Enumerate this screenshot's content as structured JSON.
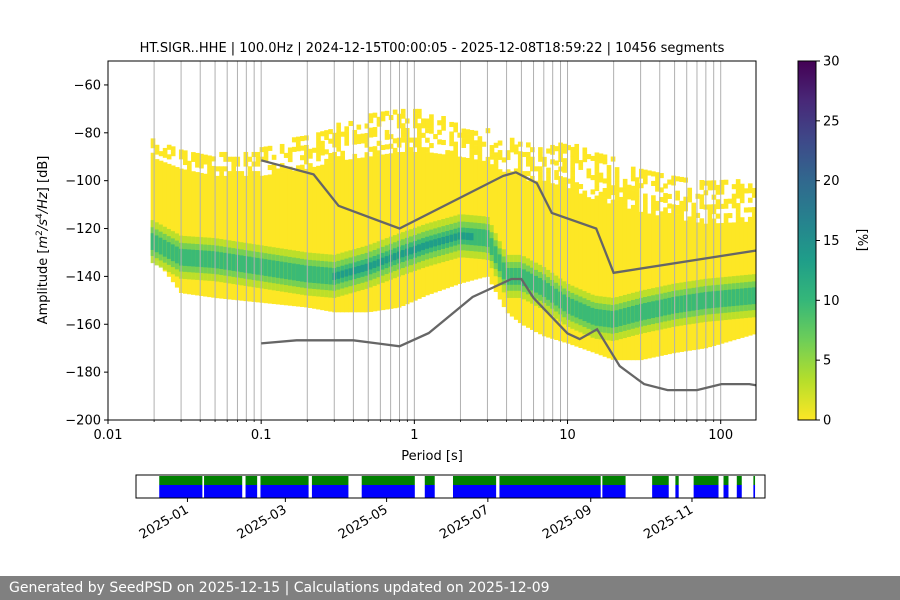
{
  "chart_data": [
    {
      "type": "heatmap",
      "title": "HT.SIGR..HHE | 100.0Hz | 2024-12-15T00:00:05 - 2025-12-08T18:59:22 | 10456 segments",
      "xlabel": "Period [s]",
      "ylabel_parts": [
        "Amplitude [",
        "m",
        "2",
        "/",
        "s",
        "4",
        "/",
        "Hz",
        "] [dB]"
      ],
      "xscale": "log",
      "xlim": [
        0.01,
        170
      ],
      "ylim": [
        -200,
        -50
      ],
      "x_ticks": [
        0.01,
        0.1,
        1,
        10,
        100
      ],
      "x_tick_labels": [
        "0.01",
        "0.1",
        "1",
        "10",
        "100"
      ],
      "y_ticks": [
        -200,
        -180,
        -160,
        -140,
        -120,
        -100,
        -80,
        -60
      ],
      "y_tick_labels": [
        "−200",
        "−180",
        "−160",
        "−140",
        "−120",
        "−100",
        "−80",
        "−60"
      ],
      "grid": "vertical log gridlines",
      "colorbar": {
        "label": "[%]",
        "range": [
          0,
          30
        ],
        "ticks": [
          0,
          5,
          10,
          15,
          20,
          25,
          30
        ],
        "tick_labels": [
          "0",
          "5",
          "10",
          "15",
          "20",
          "25",
          "30"
        ],
        "colormap": [
          "#fde725",
          "#b5de2b",
          "#6ece58",
          "#35b779",
          "#1f9e89",
          "#26828e",
          "#31688e",
          "#3e4989",
          "#482878",
          "#440154"
        ]
      },
      "density": {
        "x": [
          0.019,
          0.03,
          0.05,
          0.1,
          0.2,
          0.3,
          0.5,
          0.8,
          1.2,
          2,
          3,
          4,
          5,
          7,
          10,
          15,
          20,
          30,
          50,
          80,
          170
        ],
        "mode": [
          -125,
          -132,
          -133,
          -136,
          -139,
          -140,
          -136,
          -131,
          -127,
          -123,
          -124,
          -140,
          -140,
          -145,
          -152,
          -157,
          -158,
          -155,
          -152,
          -150,
          -148
        ],
        "upper": [
          -90,
          -95,
          -98,
          -98,
          -95,
          -92,
          -90,
          -88,
          -88,
          -90,
          -92,
          -97,
          -100,
          -100,
          -103,
          -108,
          -110,
          -113,
          -116,
          -118,
          -117
        ],
        "lower": [
          -130,
          -147,
          -149,
          -151,
          -153,
          -155,
          -155,
          -153,
          -148,
          -143,
          -140,
          -155,
          -160,
          -165,
          -168,
          -172,
          -175,
          -175,
          -172,
          -170,
          -164
        ],
        "scatter_top": [
          -82,
          -88,
          -90,
          -88,
          -82,
          -78,
          -74,
          -70,
          -72,
          -78,
          -80,
          -82,
          -85,
          -88,
          -85,
          -88,
          -92,
          -95,
          -98,
          -100,
          -102
        ]
      },
      "nhnm": {
        "x": [
          0.1,
          0.22,
          0.32,
          0.8,
          3.8,
          4.6,
          6.3,
          7.9,
          15.4,
          20,
          354.8
        ],
        "y": [
          -91.5,
          -97.4,
          -110.5,
          -120,
          -98,
          -96.5,
          -101,
          -113.5,
          -120,
          -138.5,
          -126
        ]
      },
      "nlnm": {
        "x": [
          0.1,
          0.17,
          0.4,
          0.8,
          1.24,
          2.4,
          4.3,
          5,
          6,
          10,
          12,
          15.6,
          21.9,
          31.6,
          45,
          70,
          101,
          154,
          170
        ],
        "y": [
          -168,
          -166.7,
          -166.7,
          -169.2,
          -163.7,
          -148.6,
          -141.1,
          -141.1,
          -149,
          -163.8,
          -166.2,
          -162.1,
          -177.5,
          -185,
          -187.5,
          -187.5,
          -185,
          -185,
          -185.5
        ]
      }
    },
    {
      "type": "timeline",
      "x_tick_labels": [
        "2025-01",
        "2025-03",
        "2025-05",
        "2025-07",
        "2025-09",
        "2025-11"
      ],
      "x_ticks": [
        "2025-01-01",
        "2025-03-01",
        "2025-05-01",
        "2025-07-01",
        "2025-09-01",
        "2025-11-01"
      ],
      "xlim": [
        "2024-12-01",
        "2025-12-15"
      ],
      "series": [
        {
          "color": "#008000",
          "segments": [
            [
              "2024-12-15",
              "2025-01-10"
            ],
            [
              "2025-01-11",
              "2025-02-03"
            ],
            [
              "2025-02-05",
              "2025-02-12"
            ],
            [
              "2025-02-14",
              "2025-03-15"
            ],
            [
              "2025-03-17",
              "2025-04-08"
            ],
            [
              "2025-04-16",
              "2025-05-18"
            ],
            [
              "2025-05-24",
              "2025-05-30"
            ],
            [
              "2025-06-10",
              "2025-07-06"
            ],
            [
              "2025-07-08",
              "2025-09-07"
            ],
            [
              "2025-09-08",
              "2025-09-22"
            ],
            [
              "2025-10-08",
              "2025-10-18"
            ],
            [
              "2025-10-22",
              "2025-10-24"
            ],
            [
              "2025-11-02",
              "2025-11-17"
            ],
            [
              "2025-11-20",
              "2025-11-23"
            ],
            [
              "2025-11-28",
              "2025-12-01"
            ],
            [
              "2025-12-08",
              "2025-12-09"
            ]
          ]
        },
        {
          "color": "#0000ff",
          "segments": [
            [
              "2024-12-15",
              "2025-01-10"
            ],
            [
              "2025-01-11",
              "2025-02-03"
            ],
            [
              "2025-02-05",
              "2025-02-12"
            ],
            [
              "2025-02-14",
              "2025-03-15"
            ],
            [
              "2025-03-17",
              "2025-04-08"
            ],
            [
              "2025-04-16",
              "2025-05-18"
            ],
            [
              "2025-05-24",
              "2025-05-30"
            ],
            [
              "2025-06-10",
              "2025-07-06"
            ],
            [
              "2025-07-08",
              "2025-09-07"
            ],
            [
              "2025-09-08",
              "2025-09-22"
            ],
            [
              "2025-10-08",
              "2025-10-18"
            ],
            [
              "2025-10-22",
              "2025-10-24"
            ],
            [
              "2025-11-02",
              "2025-11-17"
            ],
            [
              "2025-11-20",
              "2025-11-23"
            ],
            [
              "2025-11-28",
              "2025-12-01"
            ],
            [
              "2025-12-08",
              "2025-12-09"
            ]
          ]
        }
      ]
    }
  ],
  "footer": {
    "text": "Generated by SeedPSD on 2025-12-15 | Calculations updated on 2025-12-09"
  }
}
